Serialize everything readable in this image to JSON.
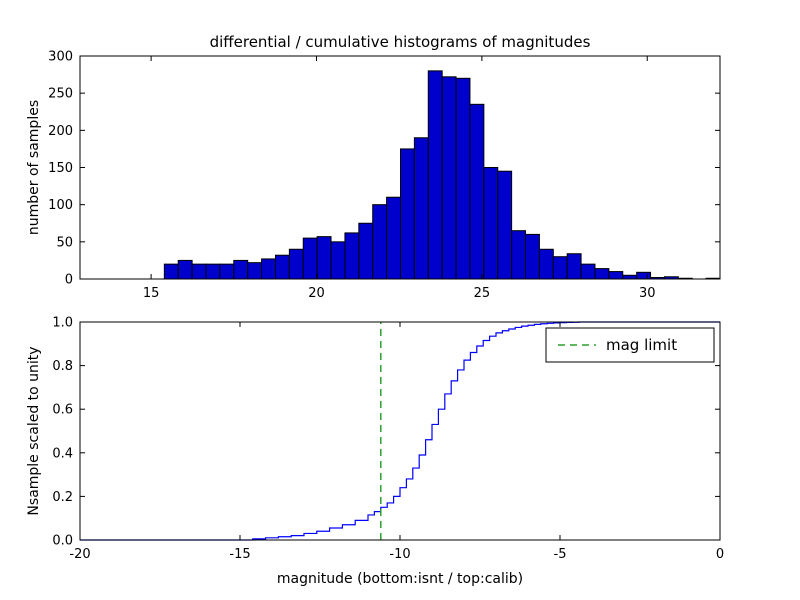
{
  "figure": {
    "background": "#ffffff",
    "title": "differential / cumulative histograms of magnitudes"
  },
  "chart_data": [
    {
      "type": "bar",
      "subplot": "top",
      "title": "differential / cumulative histograms of magnitudes",
      "ylabel": "number of samples",
      "xlim": [
        12.85,
        32.2
      ],
      "ylim": [
        0,
        300
      ],
      "xticks": [
        15,
        20,
        25,
        30
      ],
      "xtick_labels": [
        "15",
        "20",
        "25",
        "30"
      ],
      "yticks": [
        0,
        50,
        100,
        150,
        200,
        250,
        300
      ],
      "ytick_labels": [
        "0",
        "50",
        "100",
        "150",
        "200",
        "250",
        "300"
      ],
      "bar_color": "#0000cc",
      "bar_edge_color": "#000000",
      "bin_width": 0.42,
      "bins_left": [
        15.4,
        15.82,
        16.24,
        16.66,
        17.08,
        17.5,
        17.92,
        18.34,
        18.76,
        19.18,
        19.6,
        20.02,
        20.44,
        20.86,
        21.28,
        21.7,
        22.12,
        22.54,
        22.96,
        23.38,
        23.8,
        24.22,
        24.64,
        25.06,
        25.48,
        25.9,
        26.32,
        26.74,
        27.16,
        27.58,
        28.0,
        28.42,
        28.84,
        29.26,
        29.68,
        30.1,
        30.52,
        30.94,
        31.36,
        31.78
      ],
      "values": [
        20,
        25,
        20,
        20,
        20,
        25,
        22,
        27,
        32,
        40,
        55,
        57,
        50,
        62,
        75,
        100,
        110,
        175,
        190,
        280,
        272,
        270,
        235,
        150,
        145,
        65,
        60,
        40,
        30,
        34,
        20,
        14,
        10,
        5,
        9,
        2,
        3,
        1,
        0,
        1
      ],
      "grid": false
    },
    {
      "type": "line",
      "subplot": "bottom",
      "style": "step",
      "xlabel": "magnitude (bottom:isnt / top:calib)",
      "ylabel": "Nsample scaled to unity",
      "xlim": [
        -20,
        0
      ],
      "ylim": [
        0.0,
        1.0
      ],
      "xticks": [
        -20,
        -15,
        -10,
        -5,
        0
      ],
      "xtick_labels": [
        "-20",
        "-15",
        "-10",
        "-5",
        "0"
      ],
      "yticks": [
        0.0,
        0.2,
        0.4,
        0.6,
        0.8,
        1.0
      ],
      "ytick_labels": [
        "0.0",
        "0.2",
        "0.4",
        "0.6",
        "0.8",
        "1.0"
      ],
      "line_color": "#0000ff",
      "x": [
        -14.6,
        -14.2,
        -13.8,
        -13.4,
        -13.0,
        -12.6,
        -12.2,
        -11.8,
        -11.4,
        -11.0,
        -10.8,
        -10.6,
        -10.4,
        -10.2,
        -10.0,
        -9.8,
        -9.6,
        -9.4,
        -9.2,
        -9.0,
        -8.8,
        -8.6,
        -8.4,
        -8.2,
        -8.0,
        -7.8,
        -7.6,
        -7.4,
        -7.2,
        -7.0,
        -6.8,
        -6.6,
        -6.4,
        -6.2,
        -6.0,
        -5.8,
        -5.6,
        -5.4,
        -5.2,
        -5.0,
        -4.8,
        -4.6,
        -4.4
      ],
      "y": [
        0.005,
        0.01,
        0.015,
        0.02,
        0.03,
        0.04,
        0.055,
        0.07,
        0.09,
        0.115,
        0.13,
        0.15,
        0.17,
        0.2,
        0.24,
        0.28,
        0.33,
        0.39,
        0.46,
        0.53,
        0.6,
        0.67,
        0.73,
        0.78,
        0.825,
        0.86,
        0.89,
        0.915,
        0.935,
        0.95,
        0.96,
        0.968,
        0.975,
        0.981,
        0.985,
        0.989,
        0.992,
        0.994,
        0.996,
        0.997,
        0.998,
        0.999,
        1.0
      ],
      "vline": {
        "x": -10.6,
        "color": "#2ca02c",
        "linestyle": "dashed",
        "label": "mag limit"
      },
      "legend": {
        "position": "upper right",
        "entries": [
          {
            "label": "mag limit",
            "color": "#2ca02c",
            "linestyle": "dashed"
          }
        ]
      },
      "grid": false
    }
  ]
}
